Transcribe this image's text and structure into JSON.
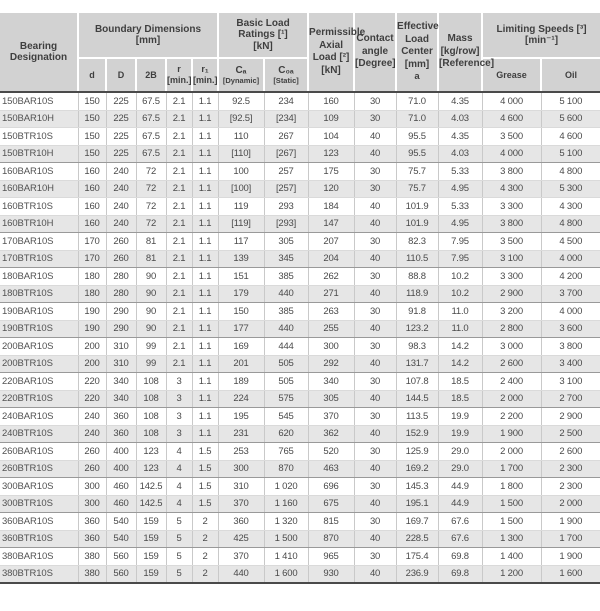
{
  "table": {
    "header": {
      "designation": "Bearing\nDesignation",
      "boundary": "Boundary Dimensions\n[mm]",
      "load_ratings": "Basic Load Ratings [¹]\n[kN]",
      "perm_axial": "Permissible\nAxial\nLoad [²]\n[kN]",
      "contact": "Contact\nangle\n[Degree]",
      "eff_center": "Effective\nLoad Center\n[mm]",
      "eff_center_a": "a",
      "mass": "Mass\n[kg/row]\n[Reference]",
      "limiting": "Limiting Speeds [³]\n[min⁻¹]",
      "sub": {
        "d": "d",
        "D": "D",
        "b2": "2B",
        "r": "r\n[min.]",
        "r1": "r₁\n[min.]",
        "ca_sym": "Cₐ",
        "ca_qual": "[Dynamic]",
        "c0a_sym": "C₀ₐ",
        "c0a_qual": "[Static]",
        "grease": "Grease",
        "oil": "Oil"
      }
    },
    "rows": [
      {
        "designation": "150BAR10S",
        "cells": [
          "150",
          "225",
          "67.5",
          "2.1",
          "1.1",
          "92.5",
          "234",
          "160",
          "30",
          "71.0",
          "4.35",
          "4 000",
          "5 100"
        ],
        "group_end": false
      },
      {
        "designation": "150BAR10H",
        "cells": [
          "150",
          "225",
          "67.5",
          "2.1",
          "1.1",
          "[92.5]",
          "[234]",
          "109",
          "30",
          "71.0",
          "4.03",
          "4 600",
          "5 600"
        ],
        "group_end": false
      },
      {
        "designation": "150BTR10S",
        "cells": [
          "150",
          "225",
          "67.5",
          "2.1",
          "1.1",
          "110",
          "267",
          "104",
          "40",
          "95.5",
          "4.35",
          "3 500",
          "4 600"
        ],
        "group_end": false
      },
      {
        "designation": "150BTR10H",
        "cells": [
          "150",
          "225",
          "67.5",
          "2.1",
          "1.1",
          "[110]",
          "[267]",
          "123",
          "40",
          "95.5",
          "4.03",
          "4 000",
          "5 100"
        ],
        "group_end": true
      },
      {
        "designation": "160BAR10S",
        "cells": [
          "160",
          "240",
          "72",
          "2.1",
          "1.1",
          "100",
          "257",
          "175",
          "30",
          "75.7",
          "5.33",
          "3 800",
          "4 800"
        ],
        "group_end": false
      },
      {
        "designation": "160BAR10H",
        "cells": [
          "160",
          "240",
          "72",
          "2.1",
          "1.1",
          "[100]",
          "[257]",
          "120",
          "30",
          "75.7",
          "4.95",
          "4 300",
          "5 300"
        ],
        "group_end": false
      },
      {
        "designation": "160BTR10S",
        "cells": [
          "160",
          "240",
          "72",
          "2.1",
          "1.1",
          "119",
          "293",
          "184",
          "40",
          "101.9",
          "5.33",
          "3 300",
          "4 300"
        ],
        "group_end": false
      },
      {
        "designation": "160BTR10H",
        "cells": [
          "160",
          "240",
          "72",
          "2.1",
          "1.1",
          "[119]",
          "[293]",
          "147",
          "40",
          "101.9",
          "4.95",
          "3 800",
          "4 800"
        ],
        "group_end": true
      },
      {
        "designation": "170BAR10S",
        "cells": [
          "170",
          "260",
          "81",
          "2.1",
          "1.1",
          "117",
          "305",
          "207",
          "30",
          "82.3",
          "7.95",
          "3 500",
          "4 500"
        ],
        "group_end": false
      },
      {
        "designation": "170BTR10S",
        "cells": [
          "170",
          "260",
          "81",
          "2.1",
          "1.1",
          "139",
          "345",
          "204",
          "40",
          "110.5",
          "7.95",
          "3 100",
          "4 000"
        ],
        "group_end": true
      },
      {
        "designation": "180BAR10S",
        "cells": [
          "180",
          "280",
          "90",
          "2.1",
          "1.1",
          "151",
          "385",
          "262",
          "30",
          "88.8",
          "10.2",
          "3 300",
          "4 200"
        ],
        "group_end": false
      },
      {
        "designation": "180BTR10S",
        "cells": [
          "180",
          "280",
          "90",
          "2.1",
          "1.1",
          "179",
          "440",
          "271",
          "40",
          "118.9",
          "10.2",
          "2 900",
          "3 700"
        ],
        "group_end": true
      },
      {
        "designation": "190BAR10S",
        "cells": [
          "190",
          "290",
          "90",
          "2.1",
          "1.1",
          "150",
          "385",
          "263",
          "30",
          "91.8",
          "11.0",
          "3 200",
          "4 000"
        ],
        "group_end": false
      },
      {
        "designation": "190BTR10S",
        "cells": [
          "190",
          "290",
          "90",
          "2.1",
          "1.1",
          "177",
          "440",
          "255",
          "40",
          "123.2",
          "11.0",
          "2 800",
          "3 600"
        ],
        "group_end": true
      },
      {
        "designation": "200BAR10S",
        "cells": [
          "200",
          "310",
          "99",
          "2.1",
          "1.1",
          "169",
          "444",
          "300",
          "30",
          "98.3",
          "14.2",
          "3 000",
          "3 800"
        ],
        "group_end": false
      },
      {
        "designation": "200BTR10S",
        "cells": [
          "200",
          "310",
          "99",
          "2.1",
          "1.1",
          "201",
          "505",
          "292",
          "40",
          "131.7",
          "14.2",
          "2 600",
          "3 400"
        ],
        "group_end": true
      },
      {
        "designation": "220BAR10S",
        "cells": [
          "220",
          "340",
          "108",
          "3",
          "1.1",
          "189",
          "505",
          "340",
          "30",
          "107.8",
          "18.5",
          "2 400",
          "3 100"
        ],
        "group_end": false
      },
      {
        "designation": "220BTR10S",
        "cells": [
          "220",
          "340",
          "108",
          "3",
          "1.1",
          "224",
          "575",
          "305",
          "40",
          "144.5",
          "18.5",
          "2 000",
          "2 700"
        ],
        "group_end": true
      },
      {
        "designation": "240BAR10S",
        "cells": [
          "240",
          "360",
          "108",
          "3",
          "1.1",
          "195",
          "545",
          "370",
          "30",
          "113.5",
          "19.9",
          "2 200",
          "2 900"
        ],
        "group_end": false
      },
      {
        "designation": "240BTR10S",
        "cells": [
          "240",
          "360",
          "108",
          "3",
          "1.1",
          "231",
          "620",
          "362",
          "40",
          "152.9",
          "19.9",
          "1 900",
          "2 500"
        ],
        "group_end": true
      },
      {
        "designation": "260BAR10S",
        "cells": [
          "260",
          "400",
          "123",
          "4",
          "1.5",
          "253",
          "765",
          "520",
          "30",
          "125.9",
          "29.0",
          "2 000",
          "2 600"
        ],
        "group_end": false
      },
      {
        "designation": "260BTR10S",
        "cells": [
          "260",
          "400",
          "123",
          "4",
          "1.5",
          "300",
          "870",
          "463",
          "40",
          "169.2",
          "29.0",
          "1 700",
          "2 300"
        ],
        "group_end": true
      },
      {
        "designation": "300BAR10S",
        "cells": [
          "300",
          "460",
          "142.5",
          "4",
          "1.5",
          "310",
          "1 020",
          "696",
          "30",
          "145.3",
          "44.9",
          "1 800",
          "2 300"
        ],
        "group_end": false
      },
      {
        "designation": "300BTR10S",
        "cells": [
          "300",
          "460",
          "142.5",
          "4",
          "1.5",
          "370",
          "1 160",
          "675",
          "40",
          "195.1",
          "44.9",
          "1 500",
          "2 000"
        ],
        "group_end": true
      },
      {
        "designation": "360BAR10S",
        "cells": [
          "360",
          "540",
          "159",
          "5",
          "2",
          "360",
          "1 320",
          "815",
          "30",
          "169.7",
          "67.6",
          "1 500",
          "1 900"
        ],
        "group_end": false
      },
      {
        "designation": "360BTR10S",
        "cells": [
          "360",
          "540",
          "159",
          "5",
          "2",
          "425",
          "1 500",
          "870",
          "40",
          "228.5",
          "67.6",
          "1 300",
          "1 700"
        ],
        "group_end": true
      },
      {
        "designation": "380BAR10S",
        "cells": [
          "380",
          "560",
          "159",
          "5",
          "2",
          "370",
          "1 410",
          "965",
          "30",
          "175.4",
          "69.8",
          "1 400",
          "1 900"
        ],
        "group_end": false
      },
      {
        "designation": "380BTR10S",
        "cells": [
          "380",
          "560",
          "159",
          "5",
          "2",
          "440",
          "1 600",
          "930",
          "40",
          "236.9",
          "69.8",
          "1 200",
          "1 600"
        ],
        "group_end": false
      }
    ]
  }
}
